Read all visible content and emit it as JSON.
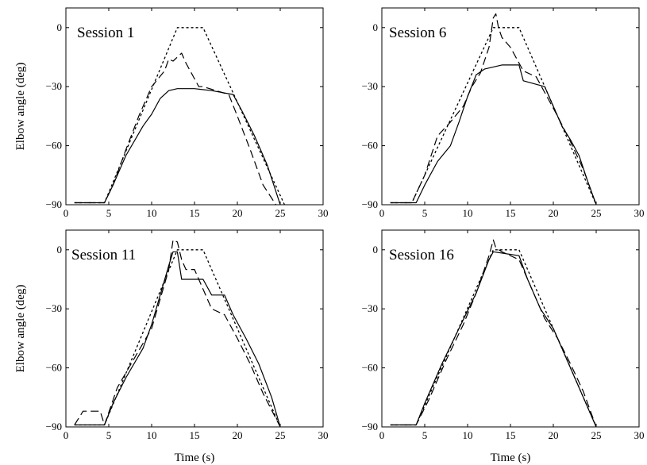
{
  "chart_data": [
    {
      "type": "line",
      "title": "Session 1",
      "ylabel": "Elbow angle (deg)",
      "xlabel": "",
      "xlim": [
        0,
        30
      ],
      "ylim": [
        -90,
        10
      ],
      "xticks": [
        0,
        5,
        10,
        15,
        20,
        25,
        30
      ],
      "yticks": [
        -90,
        -60,
        -30,
        0
      ],
      "grid": false,
      "series": [
        {
          "style": "dotted",
          "x": [
            1,
            4.5,
            13,
            16,
            25.5
          ],
          "y": [
            -89,
            -89,
            0,
            0,
            -90
          ]
        },
        {
          "style": "solid",
          "x": [
            1,
            4.5,
            5.5,
            7,
            9,
            10,
            11,
            12,
            13,
            15,
            17,
            19.5,
            20.5,
            22,
            23.5,
            25
          ],
          "y": [
            -89,
            -89,
            -80,
            -65,
            -50,
            -44,
            -36,
            -32,
            -31,
            -31,
            -32,
            -34,
            -42,
            -55,
            -70,
            -90
          ]
        },
        {
          "style": "dashed",
          "x": [
            1,
            4.5,
            5.5,
            7,
            8.5,
            10,
            11.5,
            12,
            12.5,
            13,
            13.5,
            14,
            15.5,
            16,
            19,
            20,
            21.5,
            23,
            24.5
          ],
          "y": [
            -89,
            -89,
            -80,
            -62,
            -45,
            -30,
            -22,
            -16,
            -17,
            -15,
            -13,
            -18,
            -30,
            -30,
            -34,
            -45,
            -62,
            -80,
            -90
          ]
        }
      ]
    },
    {
      "type": "line",
      "title": "Session 6",
      "ylabel": "",
      "xlabel": "",
      "xlim": [
        0,
        30
      ],
      "ylim": [
        -90,
        10
      ],
      "xticks": [
        0,
        5,
        10,
        15,
        20,
        25,
        30
      ],
      "yticks": [
        -90,
        -60,
        -30,
        0
      ],
      "grid": false,
      "series": [
        {
          "style": "dotted",
          "x": [
            1,
            3.5,
            13,
            16,
            25
          ],
          "y": [
            -89,
            -89,
            0,
            0,
            -90
          ]
        },
        {
          "style": "solid",
          "x": [
            1,
            4,
            5,
            6.5,
            8,
            9,
            10,
            11,
            12,
            14,
            16,
            16.5,
            19,
            20,
            21,
            22,
            23,
            24,
            25
          ],
          "y": [
            -89,
            -89,
            -80,
            -68,
            -60,
            -48,
            -35,
            -24,
            -21,
            -19,
            -19,
            -27,
            -30,
            -40,
            -50,
            -57,
            -65,
            -78,
            -90
          ]
        },
        {
          "style": "dashed",
          "x": [
            1,
            3.5,
            5,
            6.5,
            8,
            9.5,
            10.5,
            11.5,
            12.5,
            13,
            13.3,
            13.6,
            14,
            15,
            16.5,
            18,
            19,
            20.5,
            22,
            23.5,
            25
          ],
          "y": [
            -89,
            -89,
            -75,
            -55,
            -48,
            -40,
            -30,
            -23,
            -10,
            5,
            7,
            0,
            -5,
            -10,
            -22,
            -25,
            -33,
            -45,
            -58,
            -72,
            -90
          ]
        }
      ]
    },
    {
      "type": "line",
      "title": "Session 11",
      "ylabel": "Elbow angle (deg)",
      "xlabel": "Time (s)",
      "xlim": [
        0,
        30
      ],
      "ylim": [
        -90,
        10
      ],
      "xticks": [
        0,
        5,
        10,
        15,
        20,
        25,
        30
      ],
      "yticks": [
        -90,
        -60,
        -30,
        0
      ],
      "grid": false,
      "series": [
        {
          "style": "dotted",
          "x": [
            1,
            4.5,
            13,
            16,
            25
          ],
          "y": [
            -89,
            -89,
            0,
            0,
            -90
          ]
        },
        {
          "style": "solid",
          "x": [
            1,
            4.5,
            5.5,
            7,
            9,
            10,
            11,
            12,
            12.5,
            13,
            13.5,
            16,
            17,
            18.5,
            19.5,
            21,
            22.5,
            24,
            25
          ],
          "y": [
            -89,
            -89,
            -78,
            -65,
            -50,
            -38,
            -23,
            -8,
            -1,
            -1,
            -15,
            -15,
            -23,
            -23,
            -33,
            -45,
            -58,
            -75,
            -90
          ]
        },
        {
          "style": "dashed",
          "x": [
            1,
            2,
            4,
            4.5,
            6,
            8,
            10,
            11,
            12,
            12.5,
            13,
            13.5,
            14,
            15,
            16,
            17,
            18.5,
            20,
            21.5,
            23,
            25
          ],
          "y": [
            -89,
            -82,
            -82,
            -89,
            -70,
            -55,
            -40,
            -25,
            -10,
            5,
            4,
            -5,
            -10,
            -10,
            -20,
            -30,
            -33,
            -45,
            -58,
            -73,
            -90
          ]
        }
      ]
    },
    {
      "type": "line",
      "title": "Session 16",
      "ylabel": "",
      "xlabel": "Time (s)",
      "xlim": [
        0,
        30
      ],
      "ylim": [
        -90,
        10
      ],
      "xticks": [
        0,
        5,
        10,
        15,
        20,
        25,
        30
      ],
      "yticks": [
        -90,
        -60,
        -30,
        0
      ],
      "grid": false,
      "series": [
        {
          "style": "dotted",
          "x": [
            1,
            4,
            13,
            16,
            25
          ],
          "y": [
            -89,
            -89,
            0,
            0,
            -90
          ]
        },
        {
          "style": "solid",
          "x": [
            1,
            4,
            5,
            7,
            9,
            11,
            12.5,
            13,
            16,
            17,
            18.5,
            20,
            21.5,
            23,
            24.5,
            25
          ],
          "y": [
            -89,
            -89,
            -78,
            -58,
            -40,
            -22,
            -5,
            -1,
            -3,
            -15,
            -30,
            -40,
            -55,
            -70,
            -85,
            -90
          ]
        },
        {
          "style": "dashed",
          "x": [
            1,
            4,
            5.5,
            7.5,
            9.5,
            11,
            12.5,
            13,
            13.3,
            14,
            16,
            17.5,
            19,
            20.5,
            22,
            23.5,
            25
          ],
          "y": [
            -89,
            -89,
            -76,
            -56,
            -38,
            -22,
            -3,
            5,
            1,
            -1,
            -5,
            -20,
            -35,
            -45,
            -58,
            -72,
            -90
          ]
        }
      ]
    }
  ]
}
